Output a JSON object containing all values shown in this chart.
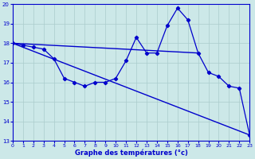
{
  "xlabel": "Graphe des températures (°c)",
  "bg_color": "#cce8e8",
  "line_color": "#0000cc",
  "grid_color": "#aacccc",
  "xlim": [
    0,
    23
  ],
  "ylim": [
    13,
    20
  ],
  "yticks": [
    13,
    14,
    15,
    16,
    17,
    18,
    19,
    20
  ],
  "xticks": [
    0,
    1,
    2,
    3,
    4,
    5,
    6,
    7,
    8,
    9,
    10,
    11,
    12,
    13,
    14,
    15,
    16,
    17,
    18,
    19,
    20,
    21,
    22,
    23
  ],
  "line1_x": [
    0,
    1,
    2,
    3,
    4,
    5,
    6,
    7,
    8,
    9,
    10,
    11,
    12,
    13,
    14,
    15,
    16,
    17,
    18,
    19,
    20,
    21,
    22,
    23
  ],
  "line1_y": [
    18.0,
    17.9,
    17.8,
    17.7,
    17.2,
    16.2,
    16.0,
    15.8,
    16.0,
    16.0,
    16.2,
    17.1,
    18.3,
    17.5,
    17.5,
    18.9,
    19.8,
    19.2,
    17.5,
    16.5,
    16.3,
    15.8,
    15.7,
    13.3
  ],
  "line2_x": [
    0,
    18
  ],
  "line2_y": [
    18.0,
    17.5
  ],
  "line3_x": [
    0,
    23
  ],
  "line3_y": [
    18.0,
    13.3
  ]
}
